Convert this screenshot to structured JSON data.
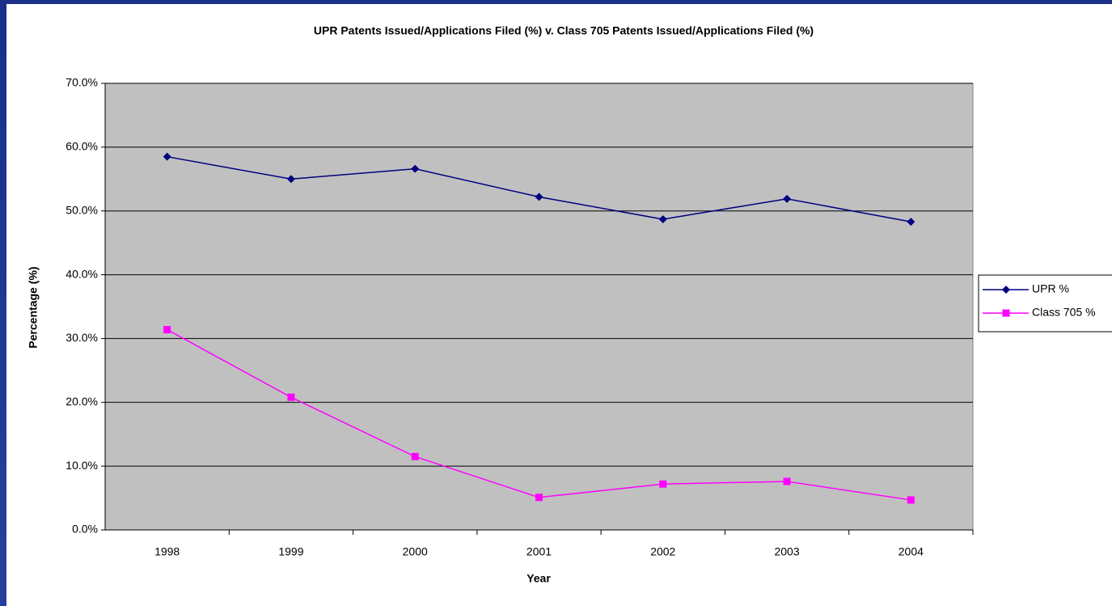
{
  "chart_data": {
    "type": "line",
    "title": "UPR Patents Issued/Applications Filed (%) v. Class 705 Patents Issued/Applications Filed (%)",
    "x_label": "Year",
    "y_label": "Percentage (%)",
    "categories": [
      "1998",
      "1999",
      "2000",
      "2001",
      "2002",
      "2003",
      "2004"
    ],
    "series": [
      {
        "name": "UPR %",
        "color": "#000080",
        "marker": "diamond",
        "values": [
          58.5,
          55.0,
          56.6,
          52.2,
          48.7,
          51.9,
          48.3
        ]
      },
      {
        "name": "Class 705 %",
        "color": "#ff00ff",
        "marker": "square",
        "values": [
          31.4,
          20.8,
          11.5,
          5.1,
          7.2,
          7.6,
          4.7
        ]
      }
    ],
    "ylim": [
      0,
      70
    ],
    "yticks": [
      {
        "value": 0,
        "label": "0.0%"
      },
      {
        "value": 10,
        "label": "10.0%"
      },
      {
        "value": 20,
        "label": "20.0%"
      },
      {
        "value": 30,
        "label": "30.0%"
      },
      {
        "value": 40,
        "label": "40.0%"
      },
      {
        "value": 50,
        "label": "50.0%"
      },
      {
        "value": 60,
        "label": "60.0%"
      },
      {
        "value": 70,
        "label": "70.0%"
      }
    ],
    "grid": true,
    "legend": "right",
    "plot_background": "#c0c0c0"
  }
}
